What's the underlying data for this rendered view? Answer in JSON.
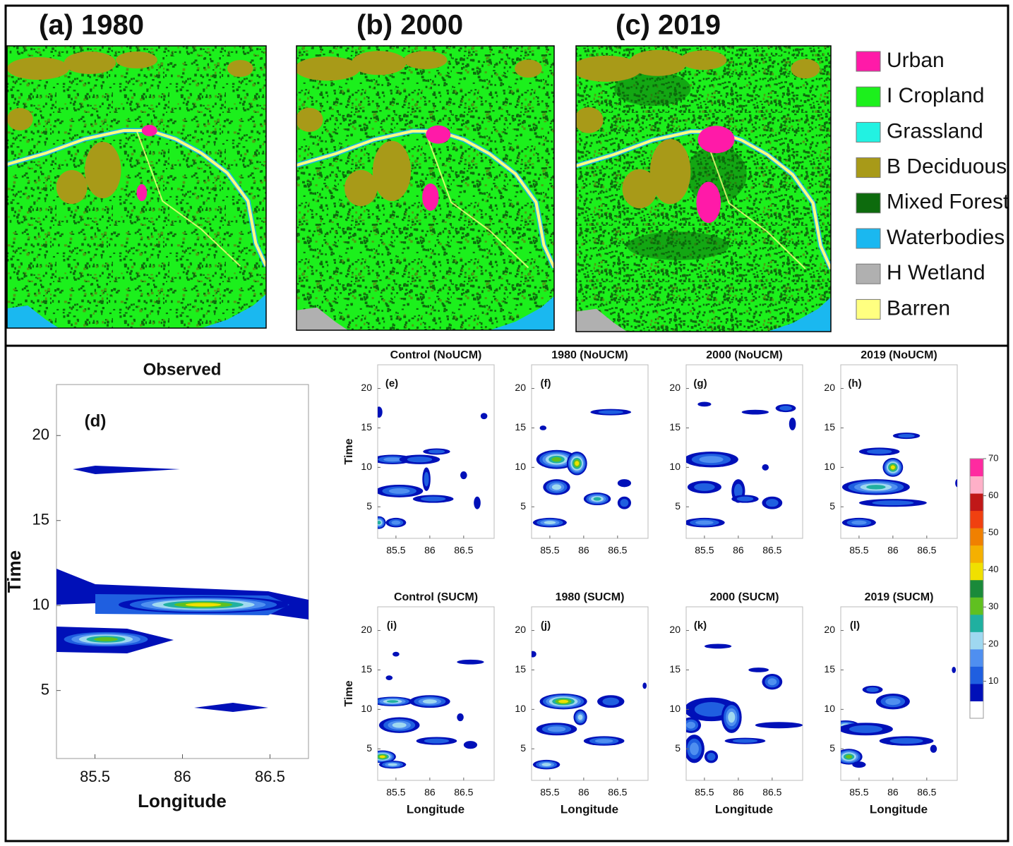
{
  "maps": {
    "panels": [
      {
        "label": "(a) 1980"
      },
      {
        "label": "(b) 2000"
      },
      {
        "label": "(c) 2019"
      }
    ],
    "legend": [
      {
        "label": "Urban",
        "color": "#ff1aa8"
      },
      {
        "label": "I Cropland",
        "color": "#1cf01c"
      },
      {
        "label": "Grassland",
        "color": "#22f2e2"
      },
      {
        "label": "B Deciduous",
        "color": "#a89a18"
      },
      {
        "label": "Mixed Forest",
        "color": "#0d6b0d"
      },
      {
        "label": "Waterbodies",
        "color": "#1ab8f0"
      },
      {
        "label": "H Wetland",
        "color": "#b0b0b0"
      },
      {
        "label": "Barren",
        "color": "#ffff80"
      }
    ]
  },
  "observed": {
    "title": "Observed",
    "tag": "(d)",
    "xlabel": "Longitude",
    "ylabel": "Time",
    "xlim": [
      85.28,
      86.72
    ],
    "ylim": [
      1,
      23
    ],
    "xticks": [
      85.5,
      86,
      86.5
    ],
    "yticks": [
      5,
      10,
      15,
      20
    ]
  },
  "simulated": {
    "xlabel": "Longitude",
    "ylabel": "Time",
    "xlim": [
      85.23,
      86.95
    ],
    "ylim": [
      1,
      23
    ],
    "xticks": [
      85.5,
      86,
      86.5
    ],
    "yticks": [
      5,
      10,
      15,
      20
    ],
    "panels": [
      {
        "title": "Control (NoUCM)",
        "tag": "(e)"
      },
      {
        "title": "1980 (NoUCM)",
        "tag": "(f)"
      },
      {
        "title": "2000 (NoUCM)",
        "tag": "(g)"
      },
      {
        "title": "2019 (NoUCM)",
        "tag": "(h)"
      },
      {
        "title": "Control (SUCM)",
        "tag": "(i)"
      },
      {
        "title": "1980 (SUCM)",
        "tag": "(j)"
      },
      {
        "title": "2000 (SUCM)",
        "tag": "(k)"
      },
      {
        "title": "2019 (SUCM)",
        "tag": "(l)"
      }
    ]
  },
  "colorbar": {
    "lim": [
      0,
      70
    ],
    "ticks": [
      10,
      20,
      30,
      40,
      50,
      60,
      70
    ],
    "colors": [
      "#ffffff",
      "#0010b8",
      "#1f5fe0",
      "#4f8ff0",
      "#9fd8f0",
      "#20b0a0",
      "#60c020",
      "#1a8a3a",
      "#f0e000",
      "#f5b000",
      "#f08000",
      "#f04010",
      "#c01818",
      "#ffb0c8",
      "#ff2aa0"
    ]
  }
}
